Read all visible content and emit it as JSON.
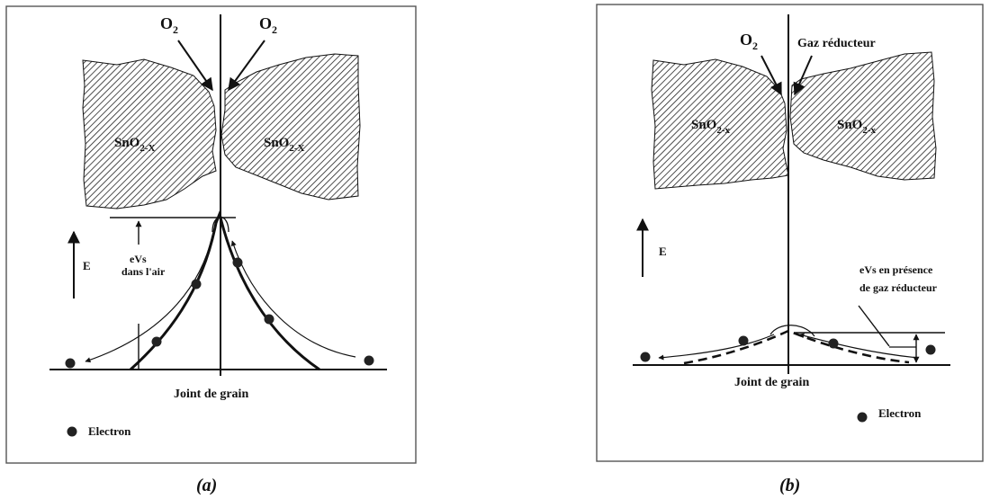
{
  "panel_a": {
    "o2_left_main": "O",
    "o2_left_sub": "2",
    "o2_right_main": "O",
    "o2_right_sub": "2",
    "grain_left_main": "SnO",
    "grain_left_sub": "2-X",
    "grain_right_main": "SnO",
    "grain_right_sub": "2-X",
    "energy_axis": "E",
    "barrier_line1": "eVs",
    "barrier_line2": "dans l'air",
    "boundary_label": "Joint de grain",
    "legend_label": "Electron",
    "caption": "(a)"
  },
  "panel_b": {
    "o2_main": "O",
    "o2_sub": "2",
    "reducing_gas": "Gaz réducteur",
    "grain_left_main": "SnO",
    "grain_left_sub": "2-x",
    "grain_right_main": "SnO",
    "grain_right_sub": "2-x",
    "energy_axis": "E",
    "barrier_line1": "eVs en présence",
    "barrier_line2": "de gaz réducteur",
    "boundary_label": "Joint de grain",
    "legend_label": "Electron",
    "caption": "(b)"
  },
  "colors": {
    "ink": "#111111",
    "hatch_bg": "#ffffff"
  }
}
